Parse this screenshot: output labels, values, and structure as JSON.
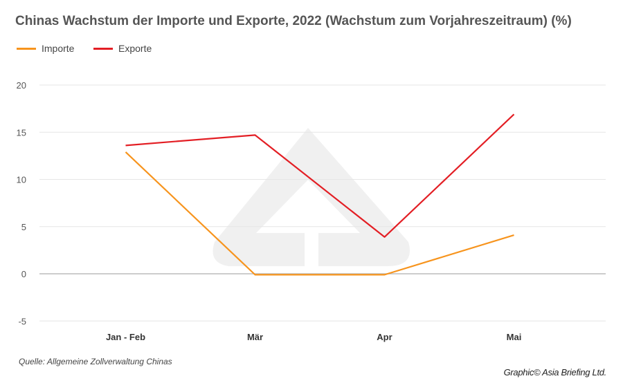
{
  "chart_data": {
    "type": "line",
    "title": "Chinas Wachstum der Importe und Exporte, 2022 (Wachstum zum Vorjahreszeitraum) (%)",
    "categories": [
      "Jan - Feb",
      "Mär",
      "Apr",
      "Mai"
    ],
    "series": [
      {
        "name": "Importe",
        "color": "#f7941d",
        "values": [
          12.9,
          -0.1,
          -0.1,
          4.1
        ]
      },
      {
        "name": "Exporte",
        "color": "#e31e24",
        "values": [
          13.6,
          14.7,
          3.9,
          16.9
        ]
      }
    ],
    "yticks": [
      20,
      15,
      10,
      5,
      0,
      -5
    ],
    "ylim": [
      -5,
      20
    ],
    "xlabel": "",
    "ylabel": "",
    "grid": true,
    "legend": "top-left"
  },
  "source": "Quelle: Allgemeine Zollverwaltung Chinas",
  "credit": "Graphic© Asia Briefing Ltd."
}
